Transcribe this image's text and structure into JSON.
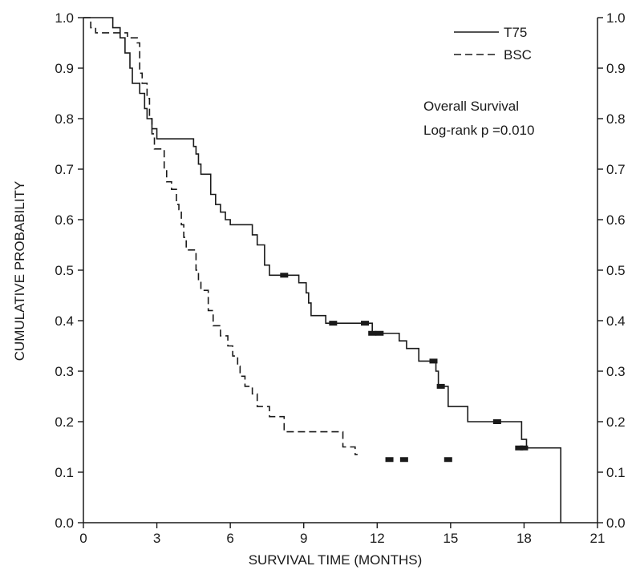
{
  "chart_data": {
    "type": "line",
    "title": "",
    "xlabel": "SURVIVAL TIME (MONTHS)",
    "ylabel": "CUMULATIVE PROBABILITY",
    "xlim": [
      0,
      21
    ],
    "ylim": [
      0,
      1
    ],
    "x_ticks": [
      "0",
      "3",
      "6",
      "9",
      "12",
      "15",
      "18",
      "21"
    ],
    "y_ticks_left": [
      "0.0",
      "0.1",
      "0.2",
      "0.3",
      "0.4",
      "0.5",
      "0.6",
      "0.7",
      "0.8",
      "0.9",
      "1.0"
    ],
    "y_ticks_right": [
      "0.0",
      "0.1",
      "0.2",
      "0.3",
      "0.4",
      "0.5",
      "0.6",
      "0.7",
      "0.8",
      "0.9",
      "1.0"
    ],
    "grid": false,
    "legend_position": "top-right",
    "annotations": [
      "Overall Survival",
      "Log-rank p =0.010"
    ],
    "series": [
      {
        "name": "T75",
        "style": "solid",
        "color": "#1a1a1a",
        "steps": [
          [
            0,
            1.0
          ],
          [
            1.2,
            0.98
          ],
          [
            1.5,
            0.96
          ],
          [
            1.7,
            0.93
          ],
          [
            1.9,
            0.9
          ],
          [
            2.0,
            0.87
          ],
          [
            2.3,
            0.85
          ],
          [
            2.5,
            0.82
          ],
          [
            2.6,
            0.8
          ],
          [
            2.8,
            0.78
          ],
          [
            3.0,
            0.76
          ],
          [
            4.5,
            0.745
          ],
          [
            4.6,
            0.73
          ],
          [
            4.7,
            0.71
          ],
          [
            4.8,
            0.69
          ],
          [
            5.2,
            0.65
          ],
          [
            5.4,
            0.63
          ],
          [
            5.6,
            0.615
          ],
          [
            5.8,
            0.6
          ],
          [
            6.0,
            0.59
          ],
          [
            6.9,
            0.57
          ],
          [
            7.1,
            0.55
          ],
          [
            7.4,
            0.51
          ],
          [
            7.6,
            0.49
          ],
          [
            8.8,
            0.475
          ],
          [
            9.1,
            0.455
          ],
          [
            9.2,
            0.435
          ],
          [
            9.3,
            0.41
          ],
          [
            9.9,
            0.395
          ],
          [
            11.8,
            0.375
          ],
          [
            12.9,
            0.36
          ],
          [
            13.2,
            0.345
          ],
          [
            13.7,
            0.32
          ],
          [
            14.4,
            0.3
          ],
          [
            14.5,
            0.27
          ],
          [
            14.9,
            0.23
          ],
          [
            15.7,
            0.2
          ],
          [
            17.9,
            0.165
          ],
          [
            18.1,
            0.148
          ],
          [
            19.5,
            0.0
          ]
        ],
        "end": 19.5,
        "censored": [
          [
            8.2,
            0.49
          ],
          [
            10.2,
            0.395
          ],
          [
            11.5,
            0.395
          ],
          [
            11.8,
            0.375
          ],
          [
            12.1,
            0.375
          ],
          [
            14.3,
            0.32
          ],
          [
            14.6,
            0.27
          ],
          [
            16.9,
            0.2
          ],
          [
            17.8,
            0.148
          ],
          [
            18.0,
            0.148
          ]
        ]
      },
      {
        "name": "BSC",
        "style": "dashed",
        "color": "#1a1a1a",
        "steps": [
          [
            0,
            1.0
          ],
          [
            0.3,
            0.98
          ],
          [
            0.5,
            0.97
          ],
          [
            1.8,
            0.96
          ],
          [
            2.2,
            0.95
          ],
          [
            2.3,
            0.89
          ],
          [
            2.4,
            0.87
          ],
          [
            2.6,
            0.84
          ],
          [
            2.7,
            0.8
          ],
          [
            2.8,
            0.77
          ],
          [
            2.9,
            0.74
          ],
          [
            3.3,
            0.7
          ],
          [
            3.4,
            0.675
          ],
          [
            3.6,
            0.66
          ],
          [
            3.8,
            0.63
          ],
          [
            3.9,
            0.62
          ],
          [
            4.0,
            0.59
          ],
          [
            4.1,
            0.565
          ],
          [
            4.2,
            0.54
          ],
          [
            4.6,
            0.5
          ],
          [
            4.7,
            0.48
          ],
          [
            4.8,
            0.46
          ],
          [
            5.1,
            0.42
          ],
          [
            5.3,
            0.39
          ],
          [
            5.6,
            0.37
          ],
          [
            5.9,
            0.35
          ],
          [
            6.1,
            0.33
          ],
          [
            6.3,
            0.31
          ],
          [
            6.4,
            0.29
          ],
          [
            6.6,
            0.27
          ],
          [
            6.9,
            0.255
          ],
          [
            7.1,
            0.23
          ],
          [
            7.6,
            0.21
          ],
          [
            8.2,
            0.18
          ],
          [
            10.6,
            0.15
          ],
          [
            11.1,
            0.135
          ]
        ],
        "end": 11.2,
        "censored": [
          [
            12.5,
            0.125
          ],
          [
            13.1,
            0.125
          ],
          [
            14.9,
            0.125
          ]
        ]
      }
    ]
  }
}
